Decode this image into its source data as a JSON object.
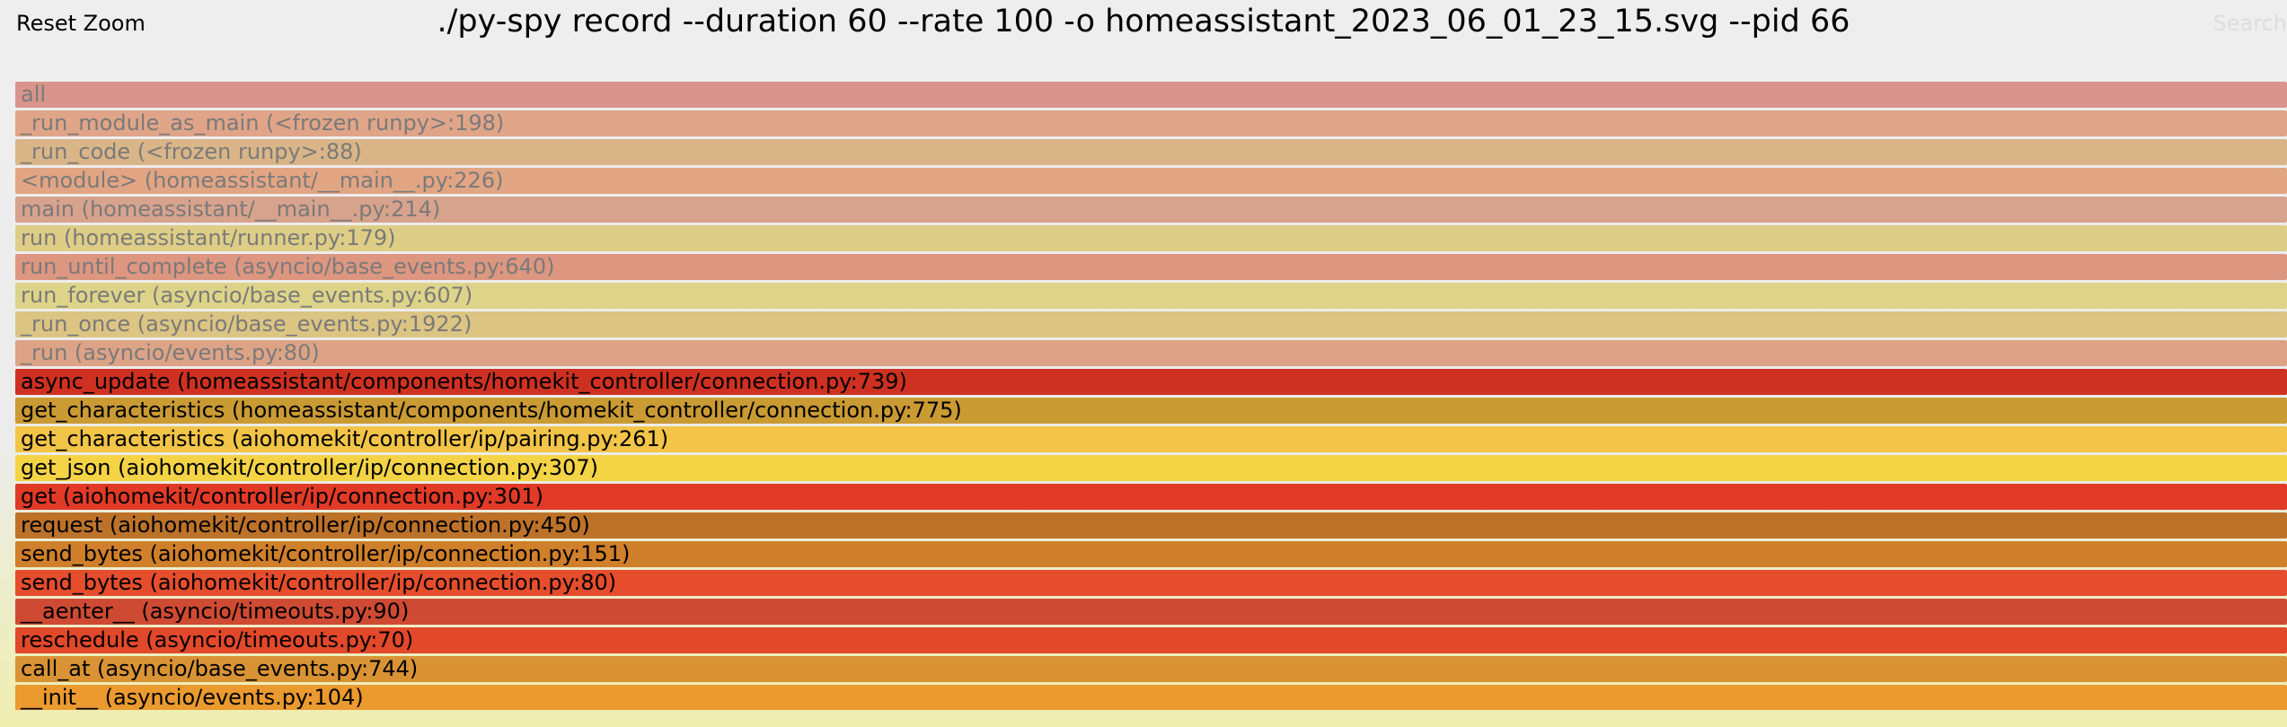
{
  "header": {
    "reset_zoom_label": "Reset Zoom",
    "title": "./py-spy record --duration 60 --rate 100 -o homeassistant_2023_06_01_23_15.svg --pid 66",
    "search_label": "Search"
  },
  "frames": [
    {
      "label": "all",
      "color": "#d9958b",
      "dimmed": true
    },
    {
      "label": "_run_module_as_main (<frozen runpy>:198)",
      "color": "#e0a588",
      "dimmed": true
    },
    {
      "label": "_run_code (<frozen runpy>:88)",
      "color": "#d9b587",
      "dimmed": true
    },
    {
      "label": "<module> (homeassistant/__main__.py:226)",
      "color": "#e2a584",
      "dimmed": true
    },
    {
      "label": "main (homeassistant/__main__.py:214)",
      "color": "#d8a38c",
      "dimmed": true
    },
    {
      "label": "run (homeassistant/runner.py:179)",
      "color": "#decd86",
      "dimmed": true
    },
    {
      "label": "run_until_complete (asyncio/base_events.py:640)",
      "color": "#dd9680",
      "dimmed": true
    },
    {
      "label": "run_forever (asyncio/base_events.py:607)",
      "color": "#ddd489",
      "dimmed": true
    },
    {
      "label": "_run_once (asyncio/base_events.py:1922)",
      "color": "#dcc483",
      "dimmed": true
    },
    {
      "label": "_run (asyncio/events.py:80)",
      "color": "#dca386",
      "dimmed": true
    },
    {
      "label": "async_update (homeassistant/components/homekit_controller/connection.py:739)",
      "color": "#ce3121",
      "dimmed": false
    },
    {
      "label": "get_characteristics (homeassistant/components/homekit_controller/connection.py:775)",
      "color": "#ca9a33",
      "dimmed": false
    },
    {
      "label": "get_characteristics (aiohomekit/controller/ip/pairing.py:261)",
      "color": "#f2c447",
      "dimmed": false
    },
    {
      "label": "get_json (aiohomekit/controller/ip/connection.py:307)",
      "color": "#f4d345",
      "dimmed": false
    },
    {
      "label": "get (aiohomekit/controller/ip/connection.py:301)",
      "color": "#e13a26",
      "dimmed": false
    },
    {
      "label": "request (aiohomekit/controller/ip/connection.py:450)",
      "color": "#bd7229",
      "dimmed": false
    },
    {
      "label": "send_bytes (aiohomekit/controller/ip/connection.py:151)",
      "color": "#d07f2a",
      "dimmed": false
    },
    {
      "label": "send_bytes (aiohomekit/controller/ip/connection.py:80)",
      "color": "#e54d2c",
      "dimmed": false
    },
    {
      "label": "__aenter__ (asyncio/timeouts.py:90)",
      "color": "#cf4a32",
      "dimmed": false
    },
    {
      "label": "reschedule (asyncio/timeouts.py:70)",
      "color": "#e2482a",
      "dimmed": false
    },
    {
      "label": "call_at (asyncio/base_events.py:744)",
      "color": "#d99334",
      "dimmed": false
    },
    {
      "label": "__init__ (asyncio/events.py:104)",
      "color": "#ea9a2e",
      "dimmed": false
    }
  ]
}
